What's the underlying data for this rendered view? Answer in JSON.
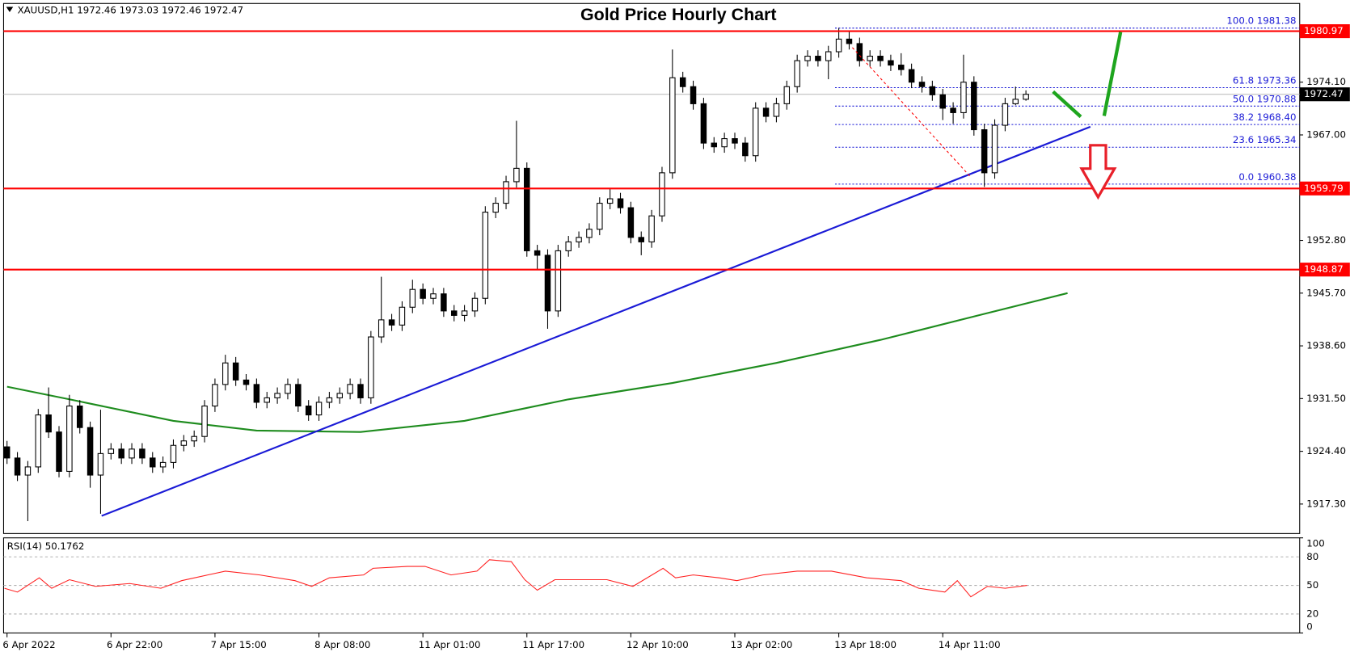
{
  "chart_data": [
    {
      "type": "candlestick",
      "title": "Gold Price Hourly Chart",
      "subtitle": "XAUUSD,H1  1972.46 1973.03 1972.46 1972.47",
      "xlim": [
        -0.33,
        124.33
      ],
      "xticks": [
        {
          "value": 0,
          "label": "6 Apr 2022"
        },
        {
          "value": 10,
          "label": "6 Apr 22:00"
        },
        {
          "value": 20,
          "label": "7 Apr 15:00"
        },
        {
          "value": 30,
          "label": "8 Apr 08:00"
        },
        {
          "value": 40,
          "label": "11 Apr 01:00"
        },
        {
          "value": 50,
          "label": "11 Apr 17:00"
        },
        {
          "value": 60,
          "label": "12 Apr 10:00"
        },
        {
          "value": 70,
          "label": "13 Apr 02:00"
        },
        {
          "value": 80,
          "label": "13 Apr 18:00"
        },
        {
          "value": 90,
          "label": "14 Apr 11:00"
        }
      ],
      "ylim": [
        1913.33,
        1984.7
      ],
      "yticks": [
        {
          "value": 1917.3,
          "label": "1917.30"
        },
        {
          "value": 1924.4,
          "label": "1924.40"
        },
        {
          "value": 1931.5,
          "label": "1931.50"
        },
        {
          "value": 1938.6,
          "label": "1938.60"
        },
        {
          "value": 1945.7,
          "label": "1945.70"
        },
        {
          "value": 1952.8,
          "label": "1952.80"
        },
        {
          "value": 1967,
          "label": "1967.00"
        },
        {
          "value": 1974.1,
          "label": "1974.10"
        }
      ],
      "up_color": "#ffffff",
      "down_color": "#000000",
      "open": [
        1925.0,
        1923.5,
        1921.2,
        1922.3,
        1929.3,
        1927.0,
        1921.7,
        1930.5,
        1927.6,
        1921.2,
        1924.1,
        1924.7,
        1923.5,
        1924.7,
        1923.5,
        1922.3,
        1922.9,
        1925.2,
        1925.8,
        1926.4,
        1930.5,
        1933.4,
        1936.3,
        1934.0,
        1933.4,
        1931.0,
        1931.6,
        1932.2,
        1933.4,
        1930.5,
        1929.3,
        1931.0,
        1931.6,
        1932.2,
        1933.4,
        1931.6,
        1939.8,
        1942.1,
        1941.4,
        1943.8,
        1946.2,
        1945.0,
        1945.6,
        1943.3,
        1942.7,
        1943.3,
        1945.0,
        1956.6,
        1957.8,
        1960.7,
        1962.5,
        1951.4,
        1950.8,
        1943.3,
        1951.4,
        1952.6,
        1953.2,
        1954.3,
        1957.8,
        1958.4,
        1957.2,
        1953.2,
        1952.6,
        1956.1,
        1961.9,
        1974.7,
        1973.5,
        1971.2,
        1965.9,
        1965.4,
        1966.5,
        1965.9,
        1964.2,
        1970.6,
        1969.5,
        1971.2,
        1973.5,
        1977.0,
        1977.6,
        1977.0,
        1978.2,
        1979.9,
        1979.3,
        1977.0,
        1977.6,
        1977.0,
        1976.4,
        1975.8,
        1974.1,
        1973.5,
        1972.4,
        1970.6,
        1970.0,
        1974.1,
        1967.7,
        1961.9,
        1968.3,
        1971.2,
        1971.8
      ],
      "high": [
        1925.8,
        1924.3,
        1923.1,
        1930.1,
        1933.0,
        1927.8,
        1932.0,
        1931.3,
        1928.4,
        1930.0,
        1925.5,
        1925.5,
        1925.5,
        1925.5,
        1924.3,
        1923.7,
        1926.0,
        1926.6,
        1927.2,
        1931.3,
        1934.2,
        1937.4,
        1937.1,
        1934.8,
        1934.2,
        1932.4,
        1933.0,
        1934.2,
        1934.2,
        1931.3,
        1931.8,
        1932.4,
        1933.0,
        1934.2,
        1934.2,
        1940.6,
        1947.9,
        1942.9,
        1944.6,
        1947.5,
        1947.0,
        1946.4,
        1946.4,
        1944.1,
        1944.1,
        1945.8,
        1957.4,
        1958.6,
        1961.5,
        1968.9,
        1963.3,
        1952.2,
        1951.6,
        1952.2,
        1953.4,
        1954.0,
        1955.1,
        1958.6,
        1959.7,
        1959.2,
        1958.0,
        1954.0,
        1956.9,
        1962.7,
        1978.5,
        1975.5,
        1974.3,
        1972.0,
        1966.7,
        1967.3,
        1967.3,
        1966.7,
        1971.4,
        1971.4,
        1972.0,
        1974.3,
        1977.8,
        1978.4,
        1978.4,
        1979.0,
        1981.4,
        1981.0,
        1980.1,
        1978.4,
        1978.4,
        1977.8,
        1978.0,
        1976.6,
        1974.9,
        1974.3,
        1973.2,
        1971.4,
        1977.8,
        1974.9,
        1968.5,
        1969.1,
        1972.0,
        1973.5,
        1973.0
      ],
      "low": [
        1922.7,
        1920.4,
        1915.0,
        1921.5,
        1926.2,
        1920.9,
        1920.9,
        1926.8,
        1919.5,
        1916.0,
        1923.3,
        1922.7,
        1922.7,
        1922.7,
        1921.5,
        1921.5,
        1922.1,
        1924.4,
        1925.0,
        1925.6,
        1929.7,
        1932.6,
        1933.2,
        1932.6,
        1930.2,
        1930.2,
        1930.8,
        1931.4,
        1929.7,
        1928.5,
        1928.5,
        1930.2,
        1930.8,
        1931.4,
        1930.8,
        1930.8,
        1939.0,
        1940.6,
        1940.6,
        1943.0,
        1944.2,
        1944.2,
        1942.5,
        1941.9,
        1941.9,
        1942.5,
        1944.2,
        1955.8,
        1957.0,
        1959.9,
        1950.6,
        1948.9,
        1940.9,
        1942.5,
        1950.6,
        1951.8,
        1952.4,
        1953.5,
        1957.0,
        1956.4,
        1952.4,
        1950.8,
        1951.8,
        1955.3,
        1961.1,
        1972.7,
        1970.4,
        1965.1,
        1964.6,
        1964.6,
        1965.1,
        1963.4,
        1963.4,
        1968.7,
        1968.7,
        1970.4,
        1972.7,
        1976.2,
        1976.2,
        1974.5,
        1977.4,
        1978.5,
        1976.2,
        1976.2,
        1976.2,
        1975.6,
        1975.0,
        1973.3,
        1972.7,
        1971.6,
        1969.0,
        1968.5,
        1969.2,
        1966.9,
        1960.0,
        1961.1,
        1967.5,
        1971.0,
        1971.6
      ],
      "close": [
        1923.5,
        1921.2,
        1922.3,
        1929.3,
        1927.0,
        1921.7,
        1930.5,
        1927.6,
        1921.2,
        1924.1,
        1924.7,
        1923.5,
        1924.7,
        1923.5,
        1922.3,
        1922.9,
        1925.2,
        1925.8,
        1926.4,
        1930.5,
        1933.4,
        1936.3,
        1934.0,
        1933.4,
        1931.0,
        1931.6,
        1932.2,
        1933.4,
        1930.5,
        1929.3,
        1931.0,
        1931.6,
        1932.2,
        1933.4,
        1931.6,
        1939.8,
        1942.1,
        1941.4,
        1943.8,
        1946.2,
        1945.0,
        1945.6,
        1943.3,
        1942.7,
        1943.3,
        1945.0,
        1956.6,
        1957.8,
        1960.7,
        1962.5,
        1951.4,
        1950.8,
        1943.3,
        1951.4,
        1952.6,
        1953.2,
        1954.3,
        1957.8,
        1958.4,
        1957.2,
        1953.2,
        1952.6,
        1956.1,
        1961.9,
        1974.7,
        1973.5,
        1971.2,
        1965.9,
        1965.4,
        1966.5,
        1965.9,
        1964.2,
        1970.6,
        1969.5,
        1971.2,
        1973.5,
        1977.0,
        1977.6,
        1977.0,
        1978.2,
        1979.9,
        1979.3,
        1977.0,
        1977.6,
        1977.0,
        1976.4,
        1975.8,
        1974.1,
        1973.5,
        1972.4,
        1970.6,
        1970.0,
        1974.1,
        1967.7,
        1961.9,
        1968.3,
        1971.2,
        1971.8,
        1972.47
      ],
      "moving_average": {
        "color": "#1e8c1e",
        "x": [
          0,
          6,
          16,
          24,
          34,
          44,
          54,
          64,
          74,
          84,
          94,
          102
        ],
        "values": [
          1933.1,
          1931.4,
          1928.5,
          1927.2,
          1927.0,
          1928.5,
          1931.4,
          1933.6,
          1936.3,
          1939.4,
          1942.9,
          1945.7
        ]
      },
      "trendline": {
        "color": "#1a1ad6",
        "x": [
          9.1,
          104.2
        ],
        "values": [
          1915.7,
          1968.1
        ]
      },
      "levels": [
        {
          "value": 1980.97,
          "label": "1980.97"
        },
        {
          "value": 1959.79,
          "label": "1959.79"
        },
        {
          "value": 1948.87,
          "label": "1948.87"
        }
      ],
      "level_color": "#ff0000",
      "current_price": {
        "value": 1972.47,
        "label": "1972.47"
      },
      "fib_color": "#1a1ad6",
      "fib_levels": [
        {
          "value": 1981.38,
          "label": "100.0 1981.38"
        },
        {
          "value": 1973.36,
          "label": "61.8 1973.36"
        },
        {
          "value": 1970.88,
          "label": "50.0 1970.88"
        },
        {
          "value": 1968.4,
          "label": "38.2 1968.40"
        },
        {
          "value": 1965.34,
          "label": "23.6 1965.34"
        },
        {
          "value": 1960.38,
          "label": "0.0 1960.38"
        }
      ]
    },
    {
      "type": "line",
      "title": "RSI(14) 50.1762",
      "xlim": [
        -0.33,
        124.33
      ],
      "ylim": [
        0,
        100
      ],
      "yticks": [
        0,
        20,
        50,
        80,
        100
      ],
      "series": [
        {
          "color": "#ff2020",
          "x": [
            -0.25,
            1,
            3.1,
            4.3,
            6,
            8.5,
            11.8,
            14.8,
            16.8,
            19.3,
            21,
            24.3,
            27.7,
            29.3,
            31,
            34.3,
            35.2,
            38.5,
            40.2,
            42.7,
            45.2,
            46.4,
            48.5,
            49.8,
            51,
            52.7,
            57.7,
            60.2,
            63.1,
            64.3,
            66,
            68.5,
            70.2,
            72.7,
            76,
            79.3,
            82.7,
            86,
            87.7,
            90.2,
            91.4,
            92.7,
            94.3,
            96,
            98.1
          ],
          "values": [
            47,
            43,
            58,
            47,
            56,
            49,
            52,
            47,
            55,
            61,
            65,
            61,
            55,
            49,
            58,
            61,
            68,
            70,
            70,
            61,
            65,
            77,
            75,
            56,
            45,
            56,
            56,
            49,
            68,
            58,
            61,
            58,
            55,
            61,
            65,
            65,
            58,
            55,
            47,
            43,
            55,
            38,
            49,
            47,
            50
          ]
        }
      ]
    }
  ]
}
